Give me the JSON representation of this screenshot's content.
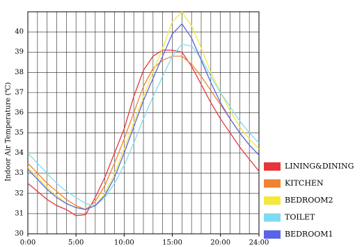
{
  "chart_data": {
    "type": "line",
    "y_label": "Indoor Air Temperature (℃)",
    "x": [
      0,
      1,
      2,
      3,
      4,
      5,
      6,
      7,
      8,
      9,
      10,
      11,
      12,
      13,
      14,
      15,
      16,
      17,
      18,
      19,
      20,
      21,
      22,
      23,
      24
    ],
    "xlim": [
      0,
      24
    ],
    "xticks": [
      {
        "value": 0,
        "label": "0:00"
      },
      {
        "value": 5,
        "label": "5:00"
      },
      {
        "value": 10,
        "label": "10:00"
      },
      {
        "value": 15,
        "label": "15:00"
      },
      {
        "value": 20,
        "label": "20:00"
      },
      {
        "value": 24,
        "label": "24:00"
      }
    ],
    "ylim": [
      30,
      41
    ],
    "yticks": [
      30,
      31,
      32,
      33,
      34,
      35,
      36,
      37,
      38,
      39,
      40
    ],
    "grid": true,
    "legend": "right",
    "series": [
      {
        "name": "LINING&DINING",
        "color": "#e8343a",
        "values": [
          32.5,
          32.1,
          31.7,
          31.4,
          31.2,
          30.9,
          30.95,
          31.8,
          32.8,
          34.0,
          35.2,
          36.8,
          38.1,
          38.8,
          39.1,
          39.1,
          39.0,
          38.3,
          37.4,
          36.5,
          35.7,
          35.0,
          34.3,
          33.7,
          33.1
        ]
      },
      {
        "name": "KITCHEN",
        "color": "#f08232",
        "values": [
          33.5,
          33.0,
          32.5,
          32.1,
          31.7,
          31.4,
          31.2,
          31.6,
          32.4,
          33.5,
          34.7,
          36.0,
          37.3,
          38.2,
          38.6,
          38.8,
          38.8,
          38.4,
          37.8,
          37.1,
          36.4,
          35.7,
          35.0,
          34.4,
          33.9
        ]
      },
      {
        "name": "BEDROOM2",
        "color": "#f5e83c",
        "values": [
          33.3,
          32.8,
          32.3,
          31.9,
          31.5,
          31.3,
          31.2,
          31.4,
          32.0,
          33.0,
          34.2,
          35.5,
          36.8,
          38.0,
          39.2,
          40.5,
          41.0,
          40.3,
          39.2,
          38.0,
          37.0,
          36.1,
          35.3,
          34.7,
          34.2
        ]
      },
      {
        "name": "TOILET",
        "color": "#7fdcf0",
        "values": [
          34.0,
          33.5,
          33.0,
          32.5,
          32.1,
          31.8,
          31.5,
          31.4,
          31.8,
          32.5,
          33.4,
          34.5,
          35.7,
          36.8,
          37.8,
          38.8,
          39.4,
          39.3,
          38.7,
          37.8,
          37.0,
          36.3,
          35.6,
          35.0,
          34.5
        ]
      },
      {
        "name": "BEDROOM1",
        "color": "#5a64e6",
        "values": [
          33.2,
          32.7,
          32.2,
          31.8,
          31.5,
          31.3,
          31.2,
          31.4,
          31.9,
          32.8,
          34.0,
          35.3,
          36.6,
          37.7,
          38.8,
          39.9,
          40.4,
          39.7,
          38.6,
          37.5,
          36.5,
          35.7,
          35.0,
          34.4,
          33.9
        ]
      }
    ]
  }
}
